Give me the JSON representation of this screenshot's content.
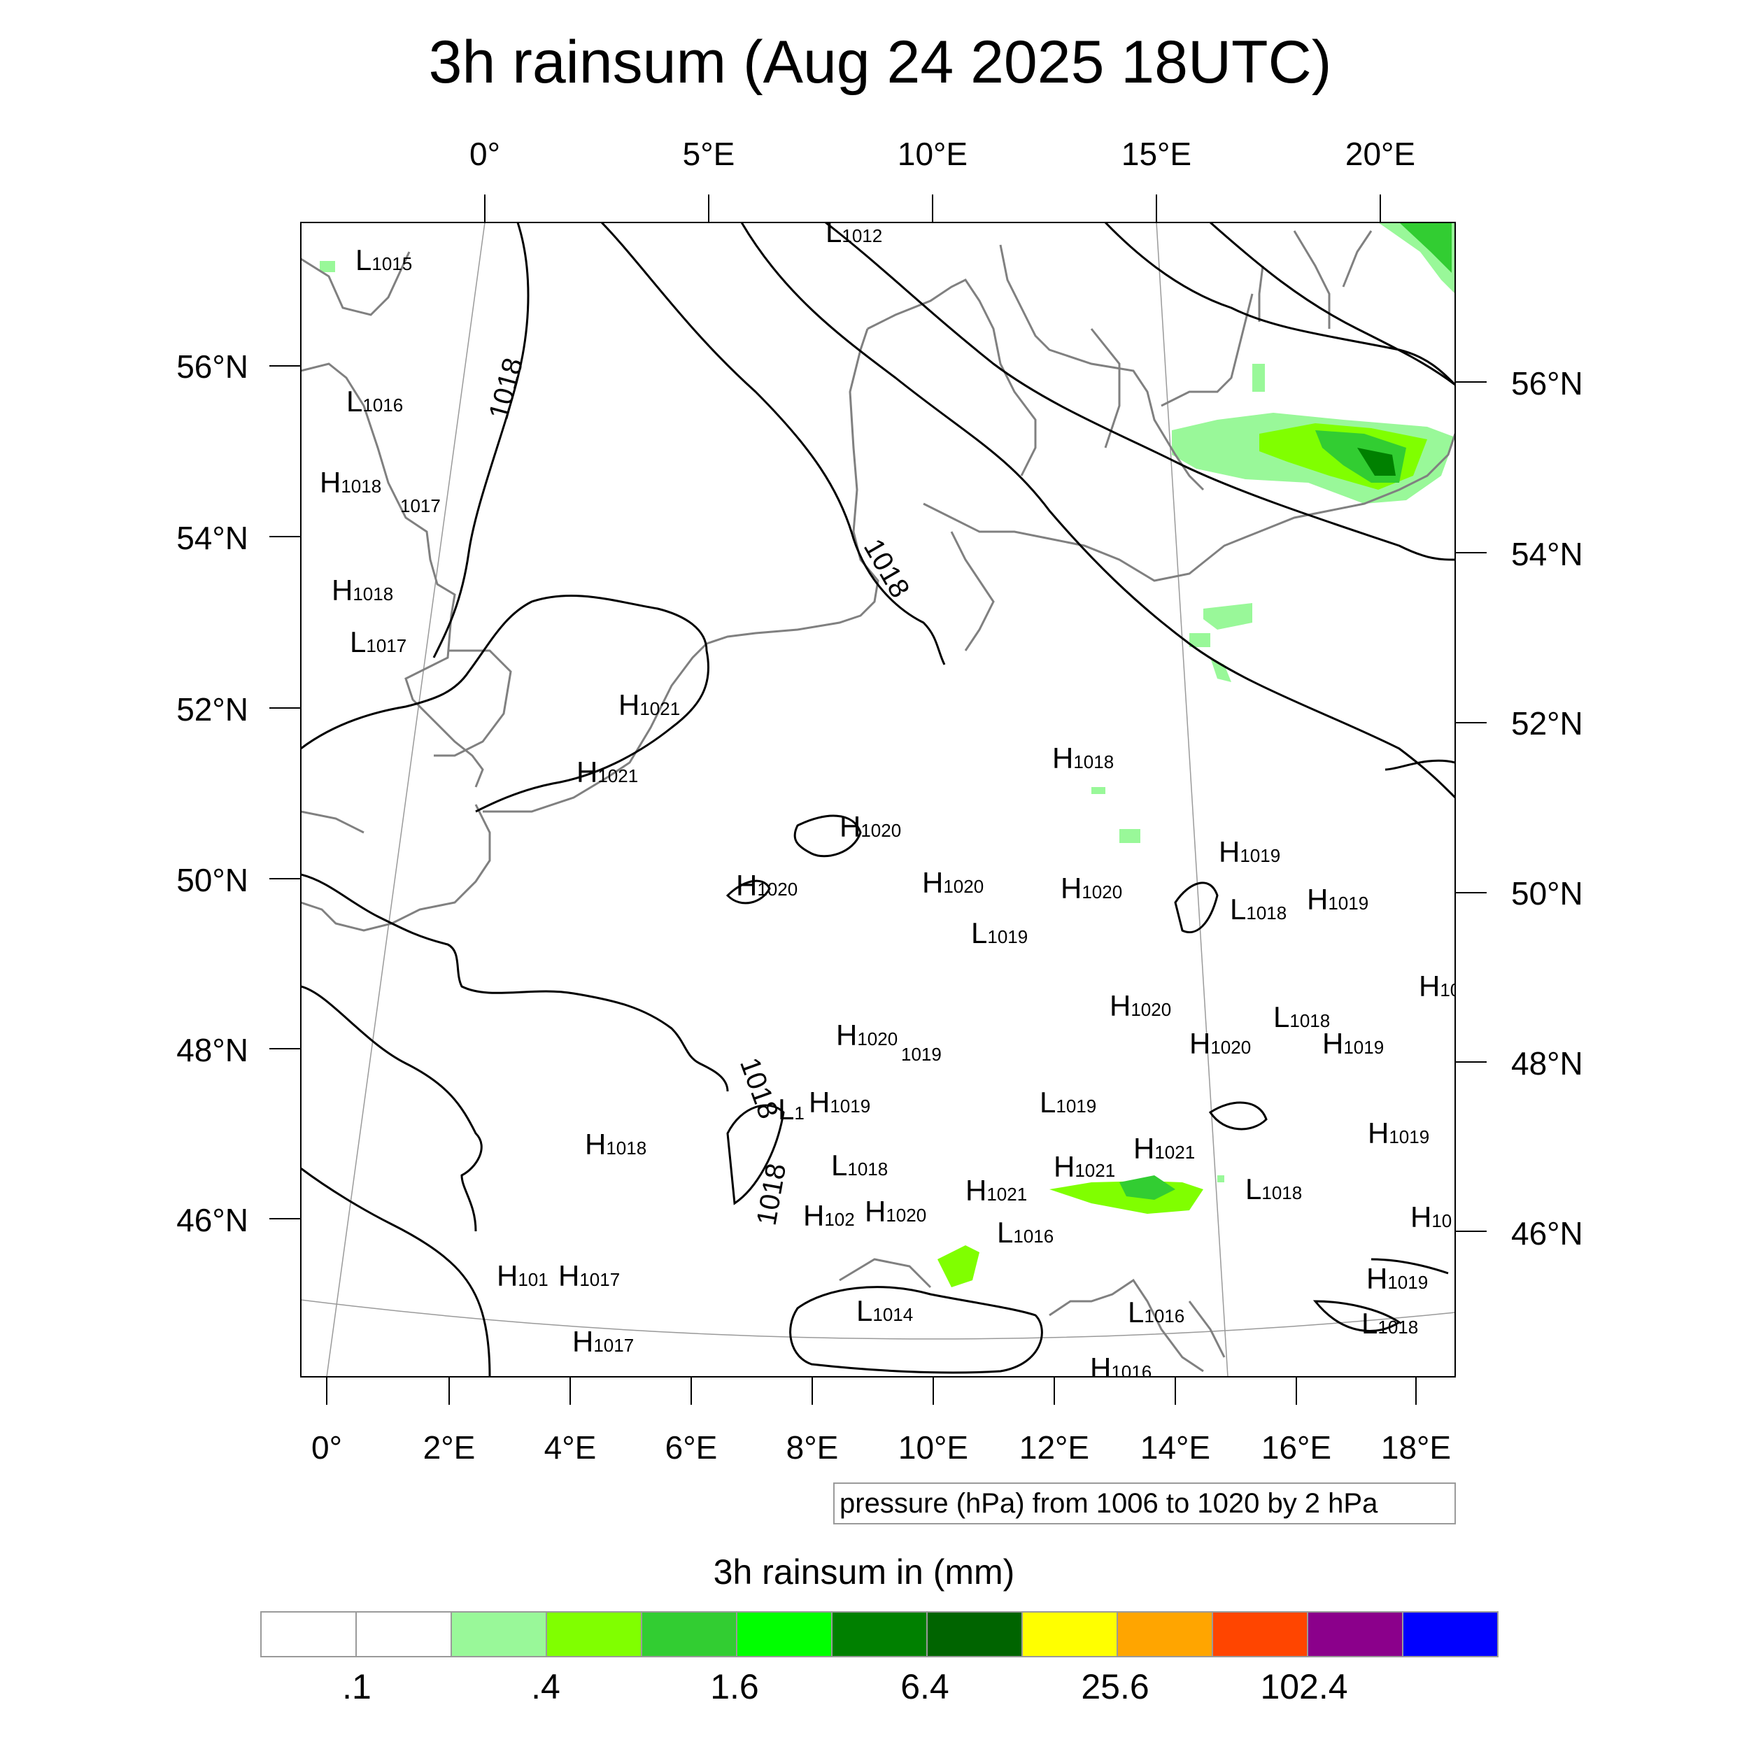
{
  "title": "3h rainsum (Aug 24 2025 18UTC)",
  "top_lon_labels": [
    "0°",
    "5°E",
    "10°E",
    "15°E",
    "20°E"
  ],
  "bottom_lon_labels": [
    "0°",
    "2°E",
    "4°E",
    "6°E",
    "8°E",
    "10°E",
    "12°E",
    "14°E",
    "16°E",
    "18°E"
  ],
  "left_lat_labels": [
    "56°N",
    "54°N",
    "52°N",
    "50°N",
    "48°N",
    "46°N"
  ],
  "right_lat_labels": [
    "56°N",
    "54°N",
    "52°N",
    "50°N",
    "48°N",
    "46°N"
  ],
  "contour_note": "pressure (hPa) from 1006 to 1020 by 2 hPa",
  "contour_labels": [
    "1018",
    "1018",
    "1018",
    "1018"
  ],
  "pressure_centers": [
    {
      "t": "L",
      "v": "1015"
    },
    {
      "t": "L",
      "v": "1012"
    },
    {
      "t": "L",
      "v": "1016"
    },
    {
      "t": "H",
      "v": "1018"
    },
    {
      "t": "",
      "v": "1017"
    },
    {
      "t": "H",
      "v": "1018"
    },
    {
      "t": "L",
      "v": "1017"
    },
    {
      "t": "H",
      "v": "1021"
    },
    {
      "t": "H",
      "v": "1021"
    },
    {
      "t": "H",
      "v": "1020"
    },
    {
      "t": "H",
      "v": "1020"
    },
    {
      "t": "H",
      "v": "1020"
    },
    {
      "t": "L",
      "v": "1019"
    },
    {
      "t": "H",
      "v": "1020"
    },
    {
      "t": "H",
      "v": "1018"
    },
    {
      "t": "H",
      "v": "1019"
    },
    {
      "t": "L",
      "v": "1018"
    },
    {
      "t": "H",
      "v": "1019"
    },
    {
      "t": "H",
      "v": "1020"
    },
    {
      "t": "H",
      "v": "1020"
    },
    {
      "t": "L",
      "v": "1018"
    },
    {
      "t": "H",
      "v": "1019"
    },
    {
      "t": "H",
      "v": "1020"
    },
    {
      "t": "",
      "v": "1019"
    },
    {
      "t": "L",
      "v": "1"
    },
    {
      "t": "H",
      "v": "1019"
    },
    {
      "t": "L",
      "v": "1019"
    },
    {
      "t": "H",
      "v": "1021"
    },
    {
      "t": "H",
      "v": "1021"
    },
    {
      "t": "L",
      "v": "1018"
    },
    {
      "t": "H",
      "v": "1018"
    },
    {
      "t": "H",
      "v": "1019"
    },
    {
      "t": "H",
      "v": "1021"
    },
    {
      "t": "L",
      "v": "1016"
    },
    {
      "t": "H",
      "v": "102"
    },
    {
      "t": "H",
      "v": "1020"
    },
    {
      "t": "L",
      "v": "1018"
    },
    {
      "t": "L",
      "v": "1014"
    },
    {
      "t": "L",
      "v": "1016"
    },
    {
      "t": "H",
      "v": "101"
    },
    {
      "t": "H",
      "v": "1017"
    },
    {
      "t": "H",
      "v": "1017"
    },
    {
      "t": "H",
      "v": "1019"
    },
    {
      "t": "L",
      "v": "1018"
    },
    {
      "t": "H",
      "v": "10"
    },
    {
      "t": "H",
      "v": "10"
    },
    {
      "t": "H",
      "v": "1016"
    }
  ],
  "colorbar": {
    "title": "3h rainsum in (mm)",
    "tick_labels": [
      ".1",
      ".4",
      "1.6",
      "6.4",
      "25.6",
      "102.4"
    ],
    "colors": [
      "#ffffff",
      "#ffffff",
      "#99f899",
      "#80ff00",
      "#32cd32",
      "#00ff00",
      "#008000",
      "#006400",
      "#ffff00",
      "#ffa500",
      "#ff4500",
      "#8b008b",
      "#0000ff"
    ]
  }
}
